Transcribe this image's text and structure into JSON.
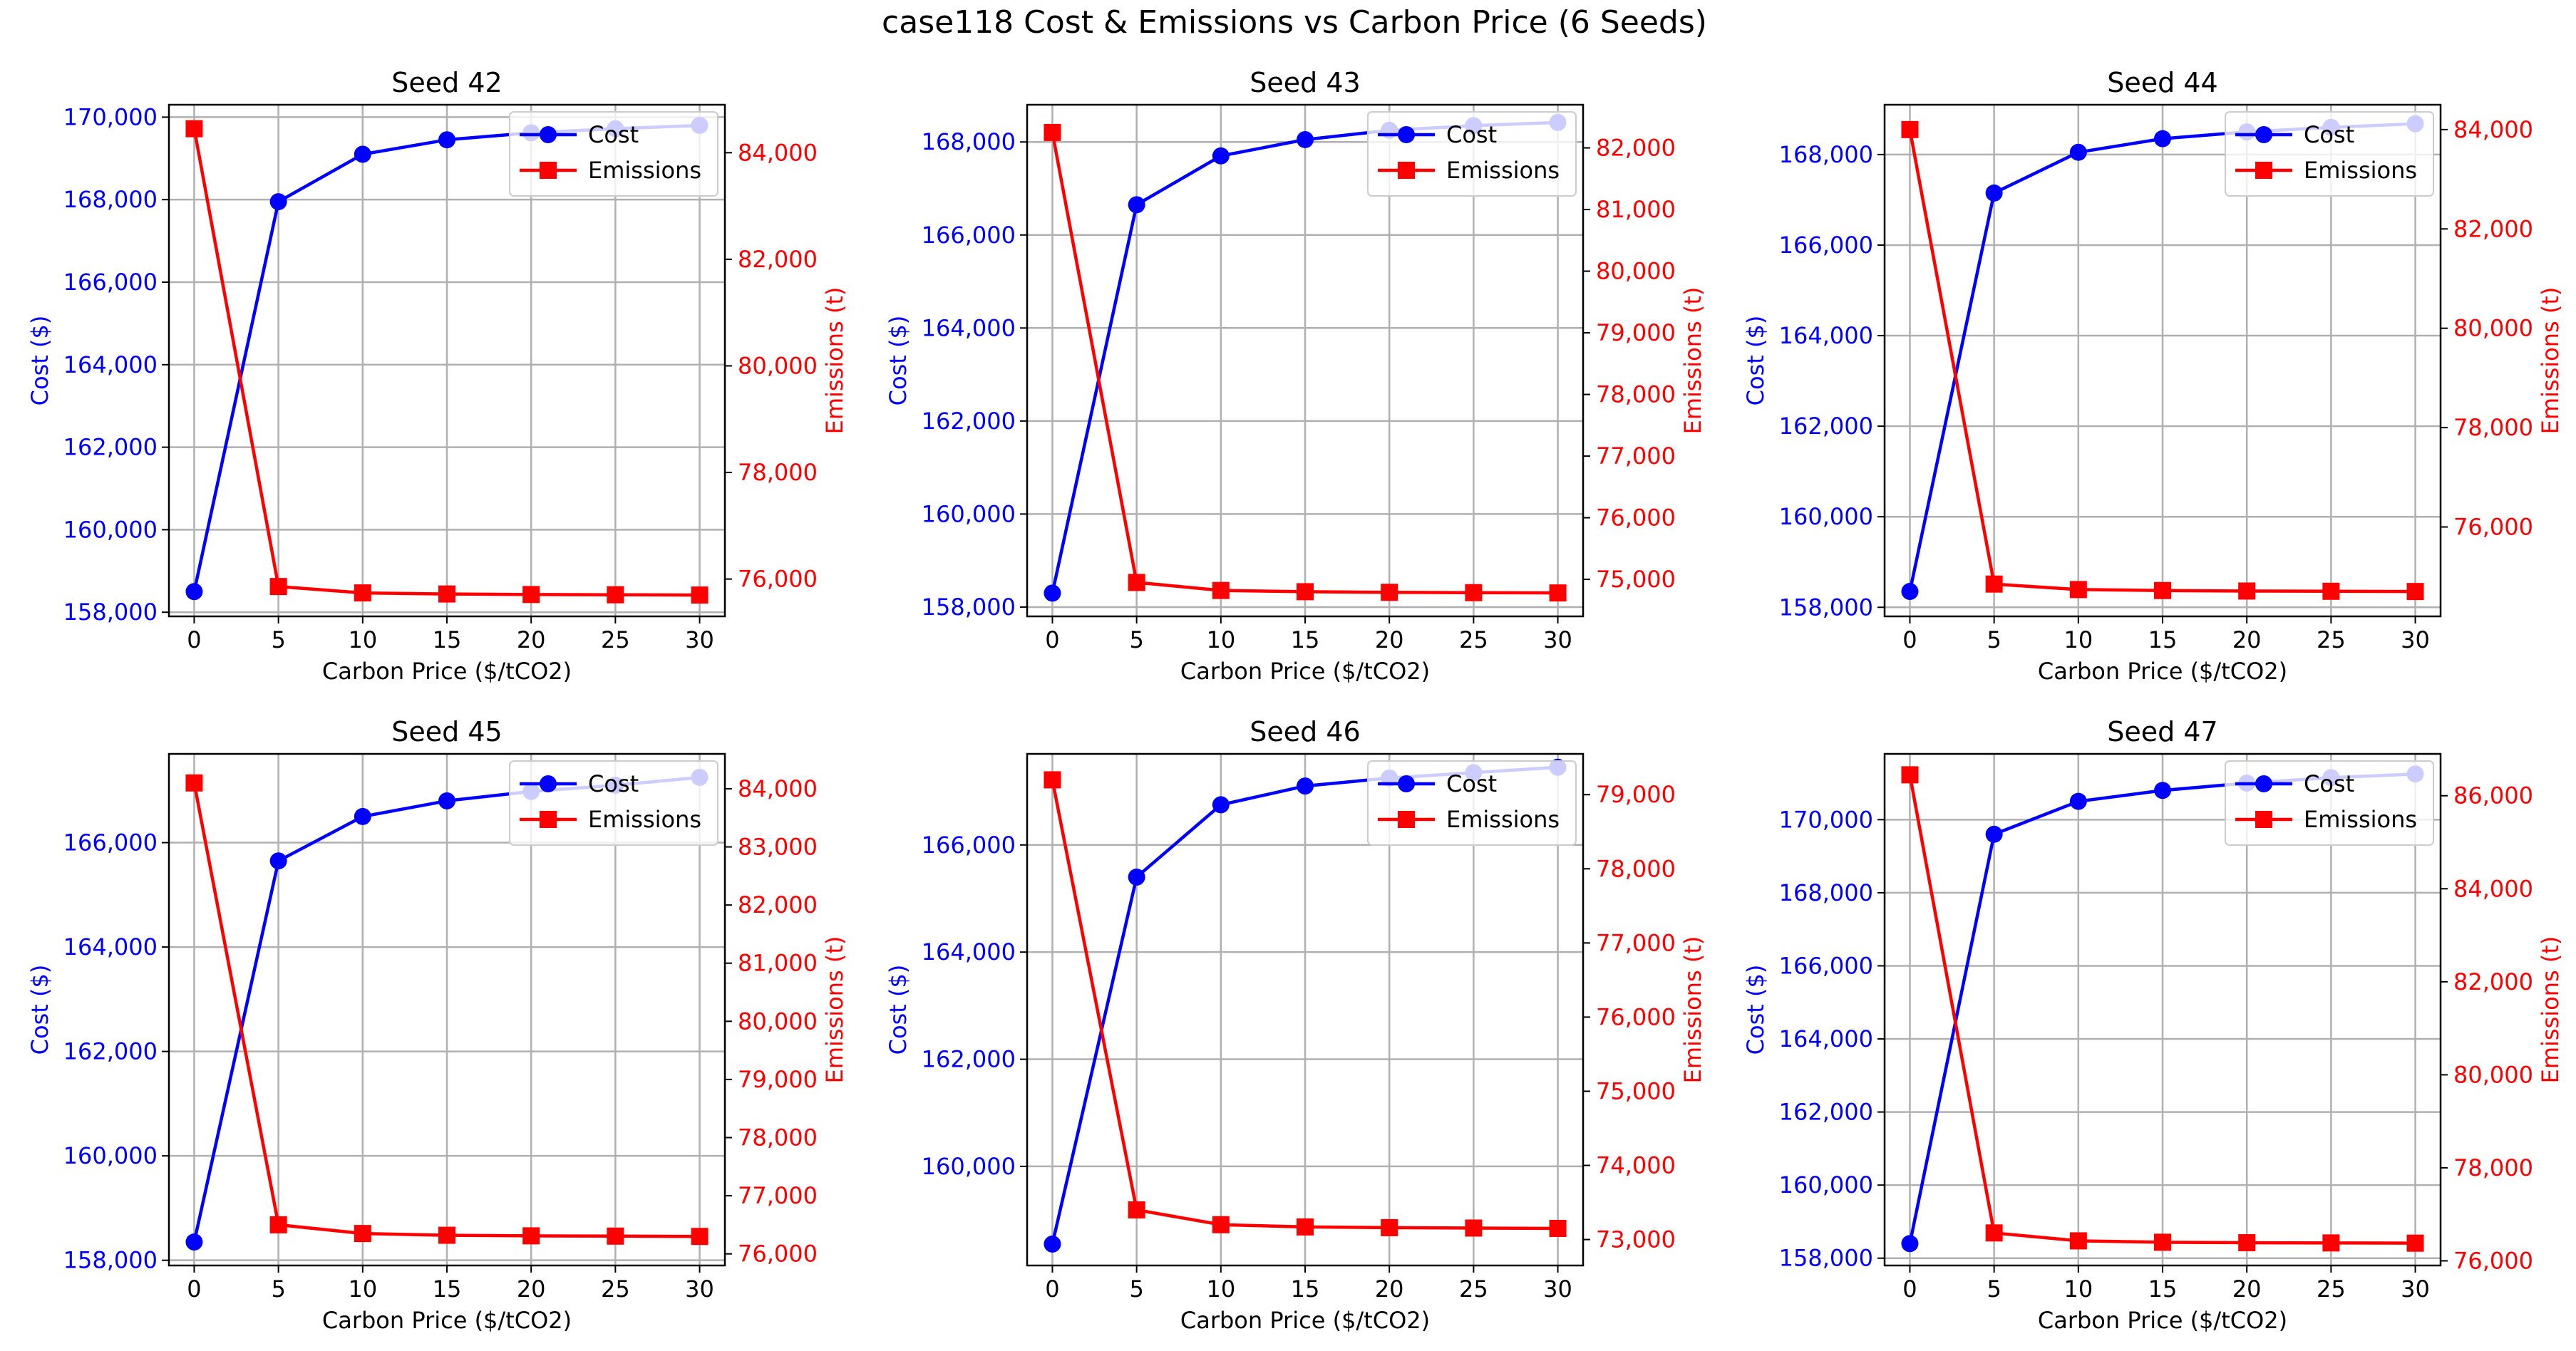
{
  "figure": {
    "suptitle": "case118 Cost & Emissions vs Carbon Price (6 Seeds)"
  },
  "colors": {
    "cost": "#0000ff",
    "emissions": "#ff0000",
    "grid": "#b0b0b0",
    "text": "#000000"
  },
  "chart_data": [
    {
      "type": "line",
      "title": "Seed 42",
      "xlabel": "Carbon Price ($/tCO2)",
      "ylabel": "Cost ($)",
      "y2label": "Emissions (t)",
      "x": [
        0,
        5,
        10,
        15,
        20,
        25,
        30
      ],
      "xticks": [
        "0",
        "5",
        "10",
        "15",
        "20",
        "25",
        "30"
      ],
      "xlim": [
        -1.5,
        31.5
      ],
      "ylim": [
        157900,
        170300
      ],
      "yticks": [
        158000,
        160000,
        162000,
        164000,
        166000,
        168000,
        170000
      ],
      "y2lim": [
        75300,
        84900
      ],
      "y2ticks": [
        76000,
        78000,
        80000,
        82000,
        84000
      ],
      "series": [
        {
          "name": "Cost",
          "axis": "left",
          "marker": "circle",
          "values": [
            158500,
            167950,
            169100,
            169450,
            169620,
            169720,
            169800
          ]
        },
        {
          "name": "Emissions",
          "axis": "right",
          "marker": "square",
          "values": [
            84450,
            75860,
            75740,
            75720,
            75710,
            75705,
            75700
          ]
        }
      ],
      "legend": "upper right",
      "grid": true
    },
    {
      "type": "line",
      "title": "Seed 43",
      "xlabel": "Carbon Price ($/tCO2)",
      "ylabel": "Cost ($)",
      "y2label": "Emissions (t)",
      "x": [
        0,
        5,
        10,
        15,
        20,
        25,
        30
      ],
      "xticks": [
        "0",
        "5",
        "10",
        "15",
        "20",
        "25",
        "30"
      ],
      "xlim": [
        -1.5,
        31.5
      ],
      "ylim": [
        157800,
        168800
      ],
      "yticks": [
        158000,
        160000,
        162000,
        164000,
        166000,
        168000
      ],
      "y2lim": [
        74400,
        82700
      ],
      "y2ticks": [
        75000,
        76000,
        77000,
        78000,
        79000,
        80000,
        81000,
        82000
      ],
      "series": [
        {
          "name": "Cost",
          "axis": "left",
          "marker": "circle",
          "values": [
            158300,
            166650,
            167700,
            168050,
            168250,
            168350,
            168420
          ]
        },
        {
          "name": "Emissions",
          "axis": "right",
          "marker": "square",
          "values": [
            82250,
            74950,
            74820,
            74800,
            74790,
            74785,
            74780
          ]
        }
      ],
      "legend": "upper right",
      "grid": true
    },
    {
      "type": "line",
      "title": "Seed 44",
      "xlabel": "Carbon Price ($/tCO2)",
      "ylabel": "Cost ($)",
      "y2label": "Emissions (t)",
      "x": [
        0,
        5,
        10,
        15,
        20,
        25,
        30
      ],
      "xticks": [
        "0",
        "5",
        "10",
        "15",
        "20",
        "25",
        "30"
      ],
      "xlim": [
        -1.5,
        31.5
      ],
      "ylim": [
        157800,
        169100
      ],
      "yticks": [
        158000,
        160000,
        162000,
        164000,
        166000,
        168000
      ],
      "y2lim": [
        74200,
        84500
      ],
      "y2ticks": [
        76000,
        78000,
        80000,
        82000,
        84000
      ],
      "series": [
        {
          "name": "Cost",
          "axis": "left",
          "marker": "circle",
          "values": [
            158350,
            167150,
            168050,
            168350,
            168500,
            168600,
            168680
          ]
        },
        {
          "name": "Emissions",
          "axis": "right",
          "marker": "square",
          "values": [
            84000,
            74850,
            74740,
            74720,
            74710,
            74705,
            74700
          ]
        }
      ],
      "legend": "upper right",
      "grid": true
    },
    {
      "type": "line",
      "title": "Seed 45",
      "xlabel": "Carbon Price ($/tCO2)",
      "ylabel": "Cost ($)",
      "y2label": "Emissions (t)",
      "x": [
        0,
        5,
        10,
        15,
        20,
        25,
        30
      ],
      "xticks": [
        "0",
        "5",
        "10",
        "15",
        "20",
        "25",
        "30"
      ],
      "xlim": [
        -1.5,
        31.5
      ],
      "ylim": [
        157900,
        167700
      ],
      "yticks": [
        158000,
        160000,
        162000,
        164000,
        166000
      ],
      "y2lim": [
        75800,
        84600
      ],
      "y2ticks": [
        76000,
        77000,
        78000,
        79000,
        80000,
        81000,
        82000,
        83000,
        84000
      ],
      "series": [
        {
          "name": "Cost",
          "axis": "left",
          "marker": "circle",
          "values": [
            158350,
            165650,
            166500,
            166800,
            166980,
            167100,
            167250
          ]
        },
        {
          "name": "Emissions",
          "axis": "right",
          "marker": "square",
          "values": [
            84100,
            76500,
            76350,
            76320,
            76310,
            76305,
            76300
          ]
        }
      ],
      "legend": "upper right",
      "grid": true
    },
    {
      "type": "line",
      "title": "Seed 46",
      "xlabel": "Carbon Price ($/tCO2)",
      "ylabel": "Cost ($)",
      "y2label": "Emissions (t)",
      "x": [
        0,
        5,
        10,
        15,
        20,
        25,
        30
      ],
      "xticks": [
        "0",
        "5",
        "10",
        "15",
        "20",
        "25",
        "30"
      ],
      "xlim": [
        -1.5,
        31.5
      ],
      "ylim": [
        158150,
        167700
      ],
      "yticks": [
        160000,
        162000,
        164000,
        166000
      ],
      "y2lim": [
        72650,
        79550
      ],
      "y2ticks": [
        73000,
        74000,
        75000,
        76000,
        77000,
        78000,
        79000
      ],
      "series": [
        {
          "name": "Cost",
          "axis": "left",
          "marker": "circle",
          "values": [
            158550,
            165400,
            166750,
            167100,
            167250,
            167350,
            167450
          ]
        },
        {
          "name": "Emissions",
          "axis": "right",
          "marker": "square",
          "values": [
            79200,
            73400,
            73200,
            73170,
            73160,
            73155,
            73150
          ]
        }
      ],
      "legend": "upper right",
      "grid": true
    },
    {
      "type": "line",
      "title": "Seed 47",
      "xlabel": "Carbon Price ($/tCO2)",
      "ylabel": "Cost ($)",
      "y2label": "Emissions (t)",
      "x": [
        0,
        5,
        10,
        15,
        20,
        25,
        30
      ],
      "xticks": [
        "0",
        "5",
        "10",
        "15",
        "20",
        "25",
        "30"
      ],
      "xlim": [
        -1.5,
        31.5
      ],
      "ylim": [
        157800,
        171800
      ],
      "yticks": [
        158000,
        160000,
        162000,
        164000,
        166000,
        168000,
        170000
      ],
      "y2lim": [
        75900,
        86900
      ],
      "y2ticks": [
        76000,
        78000,
        80000,
        82000,
        84000,
        86000
      ],
      "series": [
        {
          "name": "Cost",
          "axis": "left",
          "marker": "circle",
          "values": [
            158400,
            169600,
            170500,
            170800,
            171000,
            171150,
            171250
          ]
        },
        {
          "name": "Emissions",
          "axis": "right",
          "marker": "square",
          "values": [
            86450,
            76600,
            76430,
            76400,
            76390,
            76385,
            76380
          ]
        }
      ],
      "legend": "upper right",
      "grid": true
    }
  ]
}
